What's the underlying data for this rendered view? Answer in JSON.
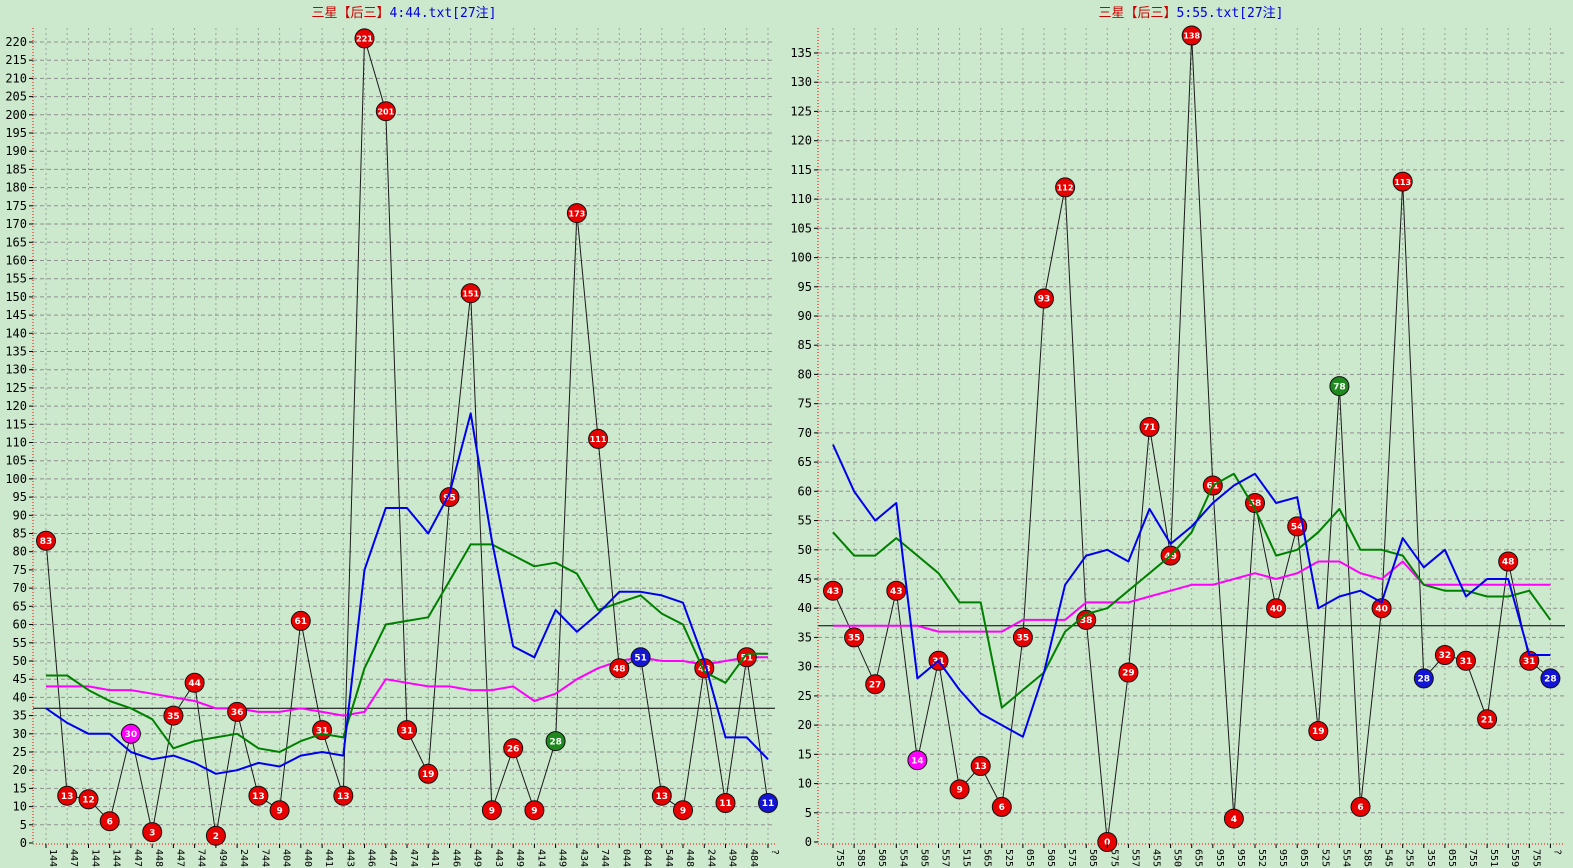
{
  "page": {
    "background": "#cce8cd"
  },
  "colors": {
    "title_red": "#cc0000",
    "title_blue": "#0000dd",
    "axis_red": "#ff0000",
    "grid_vertical": "#9aa79a",
    "grid_horizontal": "#8f8f8f",
    "series_black": "#1a1a1a",
    "ma_blue": "#0000ee",
    "ma_green": "#008000",
    "ma_magenta": "#ff00ff",
    "point_red": "#e60000",
    "point_magenta": "#ff00ff",
    "point_green": "#1e8a1e",
    "point_blue": "#1414d4",
    "point_text": "#ffffff",
    "tick_text": "#000000"
  },
  "chart_data": [
    {
      "type": "line",
      "title": "三星【后三】4:44.txt[27注]",
      "title_prefix": "三星【后三】",
      "title_file": "4:44.txt[27注]",
      "ylim": [
        0,
        220
      ],
      "y_tick_step": 5,
      "reference_line": 37,
      "grid": true,
      "legend": "none",
      "x_labels": [
        "144",
        "447",
        "144",
        "144",
        "447",
        "448",
        "447",
        "744",
        "494",
        "244",
        "744",
        "404",
        "440",
        "441",
        "443",
        "446",
        "447",
        "474",
        "441",
        "446",
        "449",
        "443",
        "449",
        "414",
        "449",
        "434",
        "744",
        "044",
        "844",
        "544",
        "448",
        "244",
        "494",
        "484",
        "?"
      ],
      "values": [
        83,
        13,
        12,
        6,
        30,
        3,
        35,
        44,
        2,
        36,
        13,
        9,
        61,
        31,
        13,
        221,
        201,
        31,
        19,
        95,
        151,
        9,
        26,
        9,
        28,
        173,
        111,
        48,
        51,
        13,
        9,
        48,
        11,
        51,
        11
      ],
      "point_colors": [
        "r",
        "r",
        "r",
        "r",
        "m",
        "r",
        "r",
        "r",
        "r",
        "r",
        "r",
        "r",
        "r",
        "r",
        "r",
        "r",
        "r",
        "r",
        "r",
        "r",
        "r",
        "r",
        "r",
        "r",
        "g",
        "r",
        "r",
        "r",
        "b",
        "r",
        "r",
        "r",
        "r",
        "r",
        "b"
      ],
      "ma_blue": [
        37,
        33,
        30,
        30,
        25,
        23,
        24,
        22,
        19,
        20,
        22,
        21,
        24,
        25,
        24,
        75,
        92,
        92,
        85,
        96,
        118,
        83,
        54,
        51,
        64,
        58,
        63,
        69,
        69,
        68,
        66,
        50,
        29,
        29,
        23
      ],
      "ma_green": [
        46,
        46,
        42,
        39,
        37,
        34,
        26,
        28,
        29,
        30,
        26,
        25,
        28,
        30,
        29,
        48,
        60,
        61,
        62,
        72,
        82,
        82,
        79,
        76,
        77,
        74,
        64,
        66,
        68,
        63,
        60,
        47,
        44,
        52,
        52
      ],
      "ma_magenta": [
        43,
        43,
        43,
        42,
        42,
        41,
        40,
        39,
        37,
        37,
        36,
        36,
        37,
        36,
        35,
        36,
        45,
        44,
        43,
        43,
        42,
        42,
        43,
        39,
        41,
        45,
        48,
        50,
        51,
        50,
        50,
        49,
        50,
        51,
        51
      ]
    },
    {
      "type": "line",
      "title": "三星【后三】5:55.txt[27注]",
      "title_prefix": "三星【后三】",
      "title_file": "5:55.txt[27注]",
      "ylim": [
        0,
        135
      ],
      "y_tick_step": 5,
      "reference_line": 37,
      "grid": true,
      "legend": "none",
      "x_labels": [
        "755",
        "585",
        "505",
        "554",
        "505",
        "557",
        "515",
        "565",
        "525",
        "055",
        "505",
        "575",
        "505",
        "575",
        "557",
        "455",
        "550",
        "655",
        "955",
        "955",
        "552",
        "955",
        "055",
        "525",
        "554",
        "585",
        "545",
        "255",
        "355",
        "055",
        "755",
        "551",
        "559",
        "755",
        "?"
      ],
      "values": [
        43,
        35,
        27,
        43,
        14,
        31,
        9,
        13,
        6,
        35,
        93,
        112,
        38,
        0,
        29,
        71,
        49,
        138,
        61,
        4,
        58,
        40,
        54,
        19,
        78,
        6,
        40,
        113,
        28,
        32,
        31,
        21,
        48,
        31,
        28
      ],
      "point_colors": [
        "r",
        "r",
        "r",
        "r",
        "m",
        "r",
        "r",
        "r",
        "r",
        "r",
        "r",
        "r",
        "r",
        "r",
        "r",
        "r",
        "r",
        "r",
        "r",
        "r",
        "r",
        "r",
        "r",
        "r",
        "g",
        "r",
        "r",
        "r",
        "b",
        "r",
        "r",
        "r",
        "r",
        "r",
        "b"
      ],
      "ma_blue": [
        68,
        60,
        55,
        58,
        28,
        31,
        26,
        22,
        20,
        18,
        29,
        44,
        49,
        50,
        48,
        57,
        51,
        54,
        58,
        61,
        63,
        58,
        59,
        40,
        42,
        43,
        41,
        52,
        47,
        50,
        42,
        45,
        45,
        32,
        32
      ],
      "ma_green": [
        53,
        49,
        49,
        52,
        49,
        46,
        41,
        41,
        23,
        26,
        29,
        36,
        39,
        40,
        43,
        46,
        49,
        53,
        61,
        63,
        57,
        49,
        50,
        53,
        57,
        50,
        50,
        49,
        44,
        43,
        43,
        42,
        42,
        43,
        38
      ],
      "ma_magenta": [
        37,
        37,
        37,
        37,
        37,
        36,
        36,
        36,
        36,
        38,
        38,
        38,
        41,
        41,
        41,
        42,
        43,
        44,
        44,
        45,
        46,
        45,
        46,
        48,
        48,
        46,
        45,
        48,
        44,
        44,
        44,
        44,
        44,
        44,
        44
      ]
    }
  ]
}
